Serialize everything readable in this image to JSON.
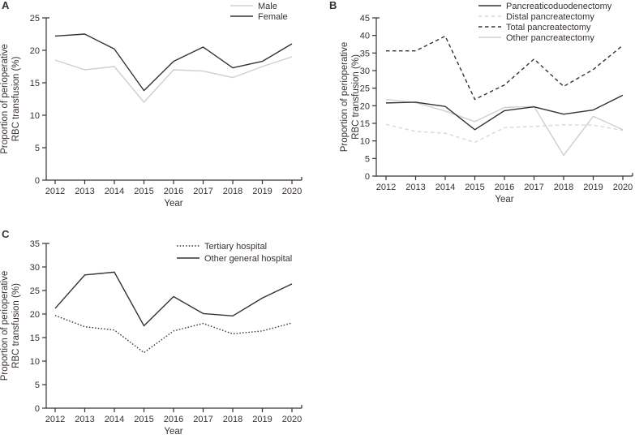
{
  "figure_colors": {
    "dark": "#383130",
    "light": "#cfcfcf",
    "light_dashed": "#d8d8d8"
  },
  "chart_data": [
    {
      "type": "line",
      "panel_label": "A",
      "title": "",
      "xlabel": "Year",
      "ylabel": "Proportion of perioperative RBC transfusion (%)",
      "ylabel_lines": [
        "Proportion of perioperative",
        "RBC transfusion (%)"
      ],
      "x": [
        "2012",
        "2013",
        "2014",
        "2015",
        "2016",
        "2017",
        "2018",
        "2019",
        "2020"
      ],
      "ylim": [
        0,
        25
      ],
      "yticks": [
        0,
        5,
        10,
        15,
        20,
        25
      ],
      "grid": false,
      "legend_position": "top-right",
      "series": [
        {
          "name": "Male",
          "color": "#cfcfcf",
          "dash": "solid",
          "values": [
            18.5,
            17.0,
            17.5,
            12.0,
            17.0,
            16.8,
            15.8,
            17.5,
            19.0
          ]
        },
        {
          "name": "Female",
          "color": "#383130",
          "dash": "solid",
          "values": [
            22.2,
            22.5,
            20.2,
            13.8,
            18.3,
            20.5,
            17.3,
            18.3,
            21.0
          ]
        }
      ]
    },
    {
      "type": "line",
      "panel_label": "B",
      "title": "",
      "xlabel": "Year",
      "ylabel": "Proportion of perioperative RBC transfusion (%)",
      "ylabel_lines": [
        "Proportion of perioperative",
        "RBC transfusion (%)"
      ],
      "x": [
        "2012",
        "2013",
        "2014",
        "2015",
        "2016",
        "2017",
        "2018",
        "2019",
        "2020"
      ],
      "ylim": [
        0,
        45
      ],
      "yticks": [
        0,
        5,
        10,
        15,
        20,
        25,
        30,
        35,
        40,
        45
      ],
      "grid": false,
      "legend_position": "top-right",
      "series": [
        {
          "name": "Pancreaticoduodenectomy",
          "color": "#383130",
          "dash": "solid",
          "values": [
            20.8,
            21.0,
            19.8,
            13.2,
            18.6,
            19.7,
            17.6,
            18.8,
            23.0
          ]
        },
        {
          "name": "Distal pancreatectomy",
          "color": "#d8d8d8",
          "dash": "dashed",
          "values": [
            14.7,
            12.7,
            12.2,
            9.6,
            13.8,
            14.1,
            14.6,
            14.5,
            13.0
          ]
        },
        {
          "name": "Total pancreatectomy",
          "color": "#383130",
          "dash": "dashed",
          "values": [
            35.6,
            35.6,
            39.8,
            21.8,
            25.9,
            33.3,
            25.5,
            30.3,
            37.2
          ]
        },
        {
          "name": "Other pancreatectomy",
          "color": "#cfcfcf",
          "dash": "solid",
          "values": [
            21.8,
            20.9,
            18.5,
            15.5,
            19.5,
            19.8,
            5.9,
            17.0,
            13.2
          ]
        }
      ]
    },
    {
      "type": "line",
      "panel_label": "C",
      "title": "",
      "xlabel": "Year",
      "ylabel": "Proportion of perioperative RBC transfusion (%)",
      "ylabel_lines": [
        "Proportion of perioperative",
        "RBC transfusion (%)"
      ],
      "x": [
        "2012",
        "2013",
        "2014",
        "2015",
        "2016",
        "2017",
        "2018",
        "2019",
        "2020"
      ],
      "ylim": [
        0,
        35
      ],
      "yticks": [
        0,
        5,
        10,
        15,
        20,
        25,
        30,
        35
      ],
      "grid": false,
      "legend_position": "top-right",
      "series": [
        {
          "name": "Tertiary hospital",
          "color": "#383130",
          "dash": "dotted",
          "values": [
            19.7,
            17.3,
            16.6,
            11.8,
            16.4,
            18.0,
            15.8,
            16.4,
            18.1
          ]
        },
        {
          "name": "Other general hospital",
          "color": "#383130",
          "dash": "solid",
          "values": [
            21.2,
            28.3,
            28.9,
            17.5,
            23.7,
            20.1,
            19.6,
            23.4,
            26.4
          ]
        }
      ]
    }
  ]
}
